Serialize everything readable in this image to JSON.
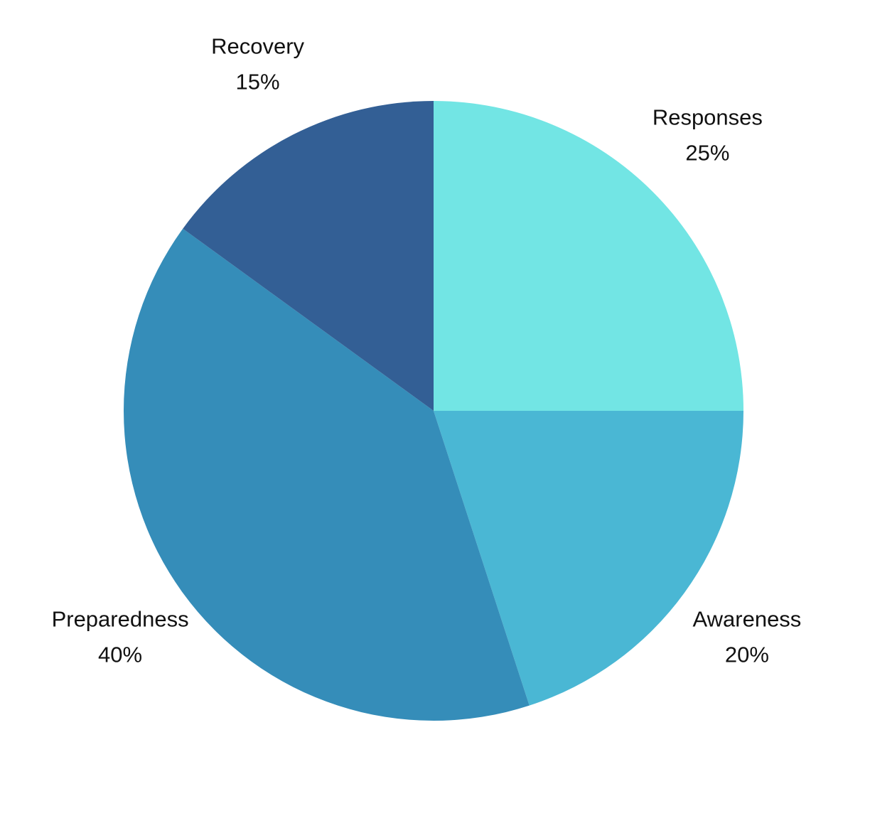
{
  "chart_data": {
    "type": "pie",
    "title": "",
    "slices": [
      {
        "label": "Responses",
        "value": 25,
        "value_label": "25%",
        "color": "#72E5E4"
      },
      {
        "label": "Awareness",
        "value": 20,
        "value_label": "20%",
        "color": "#4AB7D4"
      },
      {
        "label": "Preparedness",
        "value": 40,
        "value_label": "40%",
        "color": "#358DB9"
      },
      {
        "label": "Recovery",
        "value": 15,
        "value_label": "15%",
        "color": "#335F95"
      }
    ],
    "start_angle": "12 o'clock",
    "direction": "clockwise",
    "legend": "none"
  }
}
